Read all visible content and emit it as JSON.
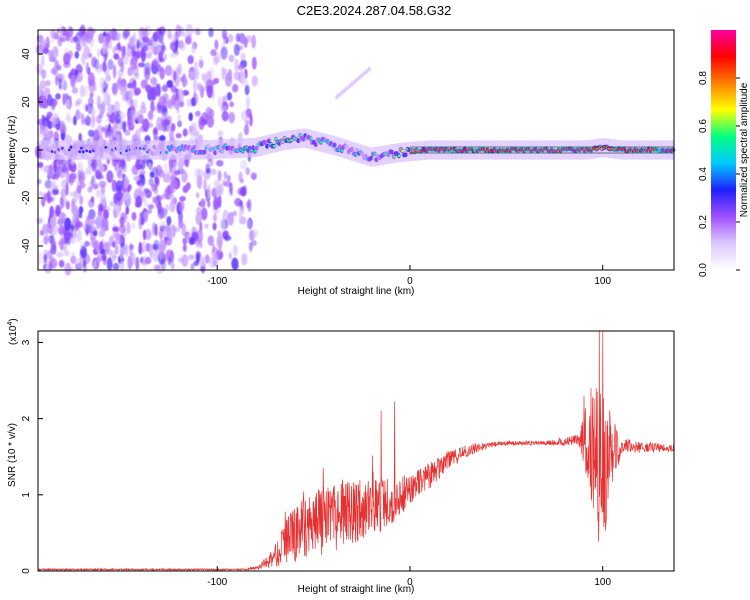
{
  "title": "C2E3.2024.287.04.58.G32",
  "chart_data": [
    {
      "type": "heatmap",
      "xlabel": "Height of straight line (km)",
      "ylabel": "Frequency (Hz)",
      "xlim": [
        -193,
        137
      ],
      "ylim": [
        -50,
        50
      ],
      "xticks": [
        -100,
        0,
        100
      ],
      "yticks": [
        -40,
        -20,
        0,
        20,
        40
      ],
      "colorbar": {
        "label": "Normalized spectral amplitude",
        "range": [
          0,
          1
        ],
        "ticks": [
          "0.0",
          "0.2",
          "0.4",
          "0.6",
          "0.8"
        ],
        "colors": [
          "#ffffff",
          "#dcc8ff",
          "#a050ff",
          "#2020ff",
          "#00c8ff",
          "#00ff80",
          "#ffff00",
          "#ff8000",
          "#ff0000",
          "#ff00a0"
        ]
      },
      "description_series": [
        {
          "name": "noise-region",
          "x_range": [
            -193,
            -80
          ],
          "freq_range": [
            -50,
            50
          ],
          "amplitude": 0.1
        },
        {
          "name": "ridge",
          "x": [
            -190,
            -150,
            -110,
            -80,
            -65,
            -55,
            -40,
            -20,
            -5,
            10,
            40,
            70,
            92,
            100,
            110,
            137
          ],
          "freq": [
            0,
            0,
            0,
            1,
            4,
            5,
            2,
            -3,
            -1,
            0,
            0,
            0,
            0,
            1,
            0,
            0
          ],
          "amplitude": [
            0.3,
            0.35,
            0.45,
            0.55,
            0.6,
            0.55,
            0.5,
            0.5,
            0.6,
            0.95,
            0.9,
            0.95,
            0.95,
            0.7,
            0.9,
            0.95
          ]
        }
      ]
    },
    {
      "type": "line",
      "xlabel": "Height of straight line (km)",
      "ylabel": "SNR (10 * v/v)",
      "yscale_label": "(x10",
      "yscale_exp": "4",
      "yscale_close": ")",
      "xlim": [
        -193,
        137
      ],
      "ylim": [
        0,
        3.15
      ],
      "xticks": [
        -100,
        0,
        100
      ],
      "yticks": [
        0,
        1,
        2,
        3
      ],
      "color": "#e83030",
      "envelope": {
        "x": [
          -193,
          -120,
          -85,
          -78,
          -70,
          -62,
          -55,
          -45,
          -35,
          -25,
          -15,
          -8,
          0,
          10,
          20,
          30,
          40,
          50,
          60,
          70,
          80,
          88,
          92,
          96,
          100,
          104,
          110,
          120,
          137
        ],
        "y": [
          0.02,
          0.02,
          0.02,
          0.05,
          0.2,
          0.45,
          0.6,
          0.65,
          0.75,
          0.8,
          0.85,
          0.95,
          1.05,
          1.25,
          1.45,
          1.58,
          1.65,
          1.68,
          1.68,
          1.68,
          1.7,
          1.72,
          1.75,
          1.6,
          1.0,
          1.55,
          1.65,
          1.62,
          1.62
        ],
        "noise": [
          0.01,
          0.01,
          0.01,
          0.03,
          0.15,
          0.35,
          0.45,
          0.45,
          0.45,
          0.4,
          0.35,
          0.3,
          0.22,
          0.18,
          0.12,
          0.08,
          0.04,
          0.03,
          0.03,
          0.03,
          0.05,
          0.08,
          0.6,
          0.9,
          1.3,
          0.6,
          0.1,
          0.07,
          0.06
        ]
      },
      "peaks": [
        {
          "x": -45,
          "y": 1.35
        },
        {
          "x": -35,
          "y": 1.2
        },
        {
          "x": -8,
          "y": 2.22
        },
        {
          "x": -15,
          "y": 2.1
        },
        {
          "x": 100,
          "y": 3.15
        }
      ]
    }
  ]
}
